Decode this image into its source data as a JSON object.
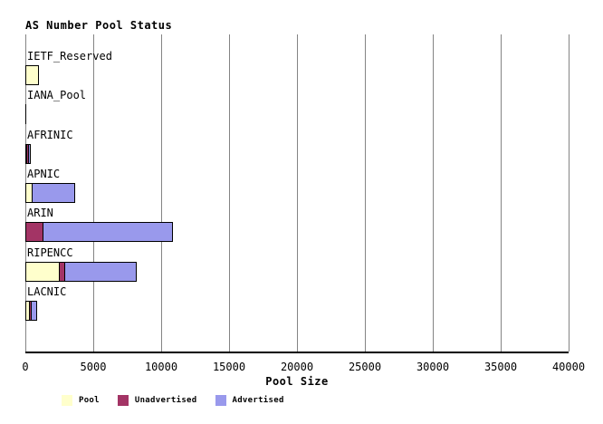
{
  "title": "AS Number Pool Status",
  "chart_data": {
    "type": "bar",
    "orientation": "horizontal",
    "stacked": true,
    "title": "AS Number Pool Status",
    "xlabel": "Pool Size",
    "xlim": [
      0,
      40000
    ],
    "xticks": [
      0,
      5000,
      10000,
      15000,
      20000,
      25000,
      30000,
      35000,
      40000
    ],
    "xtick_labels": [
      "0",
      "5000",
      "10000",
      "15000",
      "20000",
      "25000",
      "30000",
      "35000",
      "40000"
    ],
    "grid": true,
    "legend_position": "bottom",
    "categories": [
      "IETF_Reserved",
      "IANA_Pool",
      "AFRINIC",
      "APNIC",
      "ARIN",
      "RIPENCC",
      "LACNIC"
    ],
    "series": [
      {
        "name": "Pool",
        "color": "#FFFFCC",
        "values": [
          1000,
          0,
          130,
          530,
          0,
          2530,
          330
        ]
      },
      {
        "name": "Unadvertised",
        "color": "#A33465",
        "values": [
          0,
          0,
          200,
          0,
          1330,
          470,
          200
        ]
      },
      {
        "name": "Advertised",
        "color": "#9999EC",
        "values": [
          0,
          0,
          200,
          3200,
          9600,
          5330,
          470
        ]
      }
    ]
  },
  "colors": {
    "pool": "#FFFFCC",
    "unadvertised": "#A33465",
    "advertised": "#9999EC",
    "gridline": "#848484",
    "axis": "#000000",
    "background": "#FFFFFF"
  }
}
